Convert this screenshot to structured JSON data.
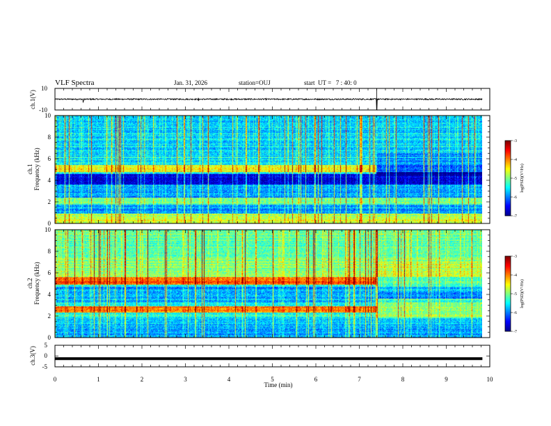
{
  "header": {
    "title": "VLF Spectra",
    "date": "Jan. 31, 2026",
    "station": "station=OUJ",
    "start_ut": "start  UT =   7 : 40: 0"
  },
  "colors": {
    "frame": "#000000",
    "background": "#ffffff",
    "colormap": [
      "#00008f",
      "#0000ff",
      "#0080ff",
      "#00ffff",
      "#80ff80",
      "#ffff00",
      "#ff8000",
      "#ff0000",
      "#800000"
    ]
  },
  "chart_data": [
    {
      "id": "ch1-waveform",
      "type": "line",
      "ylabel": "ch.1(V)",
      "ylim": [
        -10,
        10
      ],
      "yticks": [
        {
          "v": 10,
          "label": "10"
        },
        {
          "v": -10,
          "label": "-10"
        }
      ],
      "xlim": [
        0,
        10
      ],
      "baseline_v": 0,
      "trace_amplitude_v": 0.6,
      "spikes": [
        {
          "t": 0.65,
          "amp": 2.5
        },
        {
          "t": 3.3,
          "amp": 2.0
        },
        {
          "t": 7.4,
          "amp": 10
        }
      ]
    },
    {
      "id": "ch1-spectrogram",
      "type": "heatmap",
      "ylabel": "ch.1\nFrequency (kHz)",
      "ylabel_lines": [
        "ch.1",
        "Frequency (kHz)"
      ],
      "ylim": [
        0,
        10
      ],
      "yticks": [
        "0",
        "2",
        "4",
        "6",
        "8",
        "10"
      ],
      "xlim": [
        0,
        9.83
      ],
      "colorbar": {
        "label": "log(PSD)(V²/Hz)",
        "range": [
          -7,
          -3
        ],
        "ticks": [
          "-3",
          "-4",
          "-5",
          "-6",
          "-7"
        ]
      },
      "description_bands": [
        {
          "f_khz": 5.0,
          "level": 0.62,
          "until_min": 7.4
        },
        {
          "f_khz": 2.0,
          "level": 0.55
        },
        {
          "f_khz": 4.3,
          "level": 0.15
        },
        {
          "f_khz": 0.5,
          "level": 0.6
        }
      ]
    },
    {
      "id": "ch2-spectrogram",
      "type": "heatmap",
      "ylabel": "ch.2\nFrequency (kHz)",
      "ylabel_lines": [
        "ch.2",
        "Frequency (kHz)"
      ],
      "ylim": [
        0,
        10
      ],
      "yticks": [
        "0",
        "2",
        "4",
        "6",
        "8",
        "10"
      ],
      "xlim": [
        0,
        9.83
      ],
      "colorbar": {
        "label": "log(PSD)(V²/Hz)",
        "range": [
          -7,
          -3
        ],
        "ticks": [
          "-3",
          "-4",
          "-5",
          "-6",
          "-7"
        ]
      },
      "description_bands": [
        {
          "f_khz": 5.2,
          "level": 0.85,
          "until_min": 7.4
        },
        {
          "f_khz": 2.5,
          "level": 0.8,
          "until_min": 7.4
        },
        {
          "f_khz": 3.0,
          "level": 0.6
        }
      ]
    },
    {
      "id": "ch3-waveform",
      "type": "line",
      "ylabel": "ch.3(V)",
      "ylim": [
        -5,
        5
      ],
      "yticks": [
        {
          "v": 5,
          "label": "5"
        },
        {
          "v": 0,
          "label": "0"
        },
        {
          "v": -5,
          "label": "-5"
        }
      ],
      "xlim": [
        0,
        10
      ],
      "baseline_v": -1.2,
      "trace_amplitude_v": 0.25
    }
  ],
  "xaxis": {
    "title": "Time (min)",
    "range": [
      0,
      10
    ],
    "ticks": [
      "0",
      "1",
      "2",
      "3",
      "4",
      "5",
      "6",
      "7",
      "8",
      "9",
      "10"
    ]
  }
}
